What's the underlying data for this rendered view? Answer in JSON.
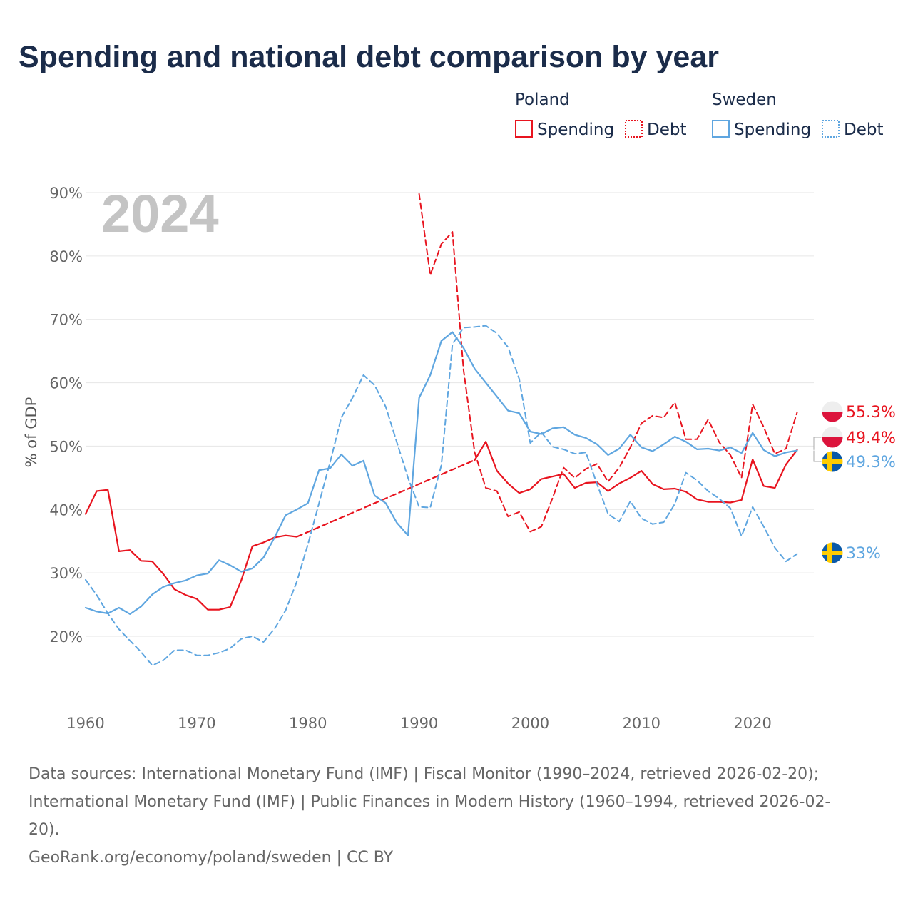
{
  "title": "Spending and national debt comparison by year",
  "colors": {
    "poland": "#e8141f",
    "sweden": "#5fa6e0",
    "grid": "#e6e6e6",
    "text": "#1b2c4a"
  },
  "legend": {
    "groups": [
      {
        "name": "Poland",
        "items": [
          {
            "label": "Spending",
            "style": "solid",
            "color": "#e8141f"
          },
          {
            "label": "Debt",
            "style": "dotted",
            "color": "#e8141f"
          }
        ]
      },
      {
        "name": "Sweden",
        "items": [
          {
            "label": "Spending",
            "style": "solid",
            "color": "#5fa6e0"
          },
          {
            "label": "Debt",
            "style": "dotted",
            "color": "#5fa6e0"
          }
        ]
      }
    ]
  },
  "year_label": "2024",
  "end_labels": [
    {
      "text": "55.3%",
      "country": "poland",
      "value": 55.3
    },
    {
      "text": "49.4%",
      "country": "poland",
      "value": 49.4
    },
    {
      "text": "49.3%",
      "country": "sweden",
      "value": 49.3
    },
    {
      "text": "33%",
      "country": "sweden",
      "value": 33
    }
  ],
  "footer": {
    "line1": "Data sources: International Monetary Fund (IMF) | Fiscal Monitor (1990–2024, retrieved 2026-02-20);",
    "line2": "International Monetary Fund (IMF) | Public Finances in Modern History (1960–1994, retrieved 2026-02-",
    "line3": "20).",
    "line4": "GeoRank.org/economy/poland/sweden | CC BY"
  },
  "chart_data": {
    "type": "line",
    "title": "Spending and national debt comparison by year",
    "xlabel": "",
    "ylabel": "% of GDP",
    "xlim": [
      1960,
      2024
    ],
    "ylim": [
      10,
      90
    ],
    "x_ticks": [
      1960,
      1970,
      1980,
      1990,
      2000,
      2010,
      2020
    ],
    "y_ticks": [
      20,
      30,
      40,
      50,
      60,
      70,
      80,
      90
    ],
    "y_tick_labels": [
      "20%",
      "30%",
      "40%",
      "50%",
      "60%",
      "70%",
      "80%",
      "90%"
    ],
    "grid": true,
    "series": [
      {
        "name": "Poland Spending",
        "country": "poland",
        "kind": "spending",
        "points": [
          [
            1960,
            39.3
          ],
          [
            1961,
            42.9
          ],
          [
            1962,
            43.1
          ],
          [
            1963,
            33.4
          ],
          [
            1964,
            33.6
          ],
          [
            1965,
            31.9
          ],
          [
            1966,
            31.8
          ],
          [
            1967,
            29.8
          ],
          [
            1968,
            27.4
          ],
          [
            1969,
            26.5
          ],
          [
            1970,
            25.9
          ],
          [
            1971,
            24.2
          ],
          [
            1972,
            24.2
          ],
          [
            1973,
            24.6
          ],
          [
            1974,
            28.8
          ],
          [
            1975,
            34.2
          ],
          [
            1976,
            34.8
          ],
          [
            1977,
            35.6
          ],
          [
            1978,
            35.9
          ],
          [
            1979,
            35.7
          ],
          [
            1995,
            47.8
          ],
          [
            1996,
            50.7
          ],
          [
            1997,
            46.1
          ],
          [
            1998,
            44.1
          ],
          [
            1999,
            42.6
          ],
          [
            2000,
            43.2
          ],
          [
            2001,
            44.8
          ],
          [
            2002,
            45.2
          ],
          [
            2003,
            45.6
          ],
          [
            2004,
            43.4
          ],
          [
            2005,
            44.2
          ],
          [
            2006,
            44.3
          ],
          [
            2007,
            42.9
          ],
          [
            2008,
            44.1
          ],
          [
            2009,
            45.0
          ],
          [
            2010,
            46.1
          ],
          [
            2011,
            44.0
          ],
          [
            2012,
            43.2
          ],
          [
            2013,
            43.3
          ],
          [
            2014,
            42.8
          ],
          [
            2015,
            41.6
          ],
          [
            2016,
            41.2
          ],
          [
            2017,
            41.2
          ],
          [
            2018,
            41.1
          ],
          [
            2019,
            41.5
          ],
          [
            2020,
            47.9
          ],
          [
            2021,
            43.7
          ],
          [
            2022,
            43.4
          ],
          [
            2023,
            47.1
          ],
          [
            2024,
            49.4
          ]
        ],
        "gaps": [
          [
            1979,
            1995
          ]
        ]
      },
      {
        "name": "Poland Debt",
        "country": "poland",
        "kind": "debt",
        "points": [
          [
            1990,
            89.8
          ],
          [
            1991,
            77.0
          ],
          [
            1992,
            81.9
          ],
          [
            1993,
            83.8
          ],
          [
            1994,
            62.0
          ],
          [
            1995,
            49.0
          ],
          [
            1996,
            43.4
          ],
          [
            1997,
            42.9
          ],
          [
            1998,
            38.9
          ],
          [
            1999,
            39.6
          ],
          [
            2000,
            36.5
          ],
          [
            2001,
            37.3
          ],
          [
            2002,
            41.8
          ],
          [
            2003,
            46.6
          ],
          [
            2004,
            45.0
          ],
          [
            2005,
            46.4
          ],
          [
            2006,
            47.2
          ],
          [
            2007,
            44.4
          ],
          [
            2008,
            46.6
          ],
          [
            2009,
            49.8
          ],
          [
            2010,
            53.6
          ],
          [
            2011,
            54.8
          ],
          [
            2012,
            54.5
          ],
          [
            2013,
            56.9
          ],
          [
            2014,
            51.1
          ],
          [
            2015,
            51.1
          ],
          [
            2016,
            54.2
          ],
          [
            2017,
            50.6
          ],
          [
            2018,
            48.6
          ],
          [
            2019,
            45.0
          ],
          [
            2020,
            56.6
          ],
          [
            2021,
            53.0
          ],
          [
            2022,
            48.8
          ],
          [
            2023,
            49.6
          ],
          [
            2024,
            55.3
          ]
        ]
      },
      {
        "name": "Sweden Spending",
        "country": "sweden",
        "kind": "spending",
        "points": [
          [
            1960,
            24.5
          ],
          [
            1961,
            23.9
          ],
          [
            1962,
            23.6
          ],
          [
            1963,
            24.5
          ],
          [
            1964,
            23.5
          ],
          [
            1965,
            24.7
          ],
          [
            1966,
            26.6
          ],
          [
            1967,
            27.8
          ],
          [
            1968,
            28.4
          ],
          [
            1969,
            28.8
          ],
          [
            1970,
            29.6
          ],
          [
            1971,
            29.9
          ],
          [
            1972,
            32.0
          ],
          [
            1973,
            31.2
          ],
          [
            1974,
            30.2
          ],
          [
            1975,
            30.7
          ],
          [
            1976,
            32.4
          ],
          [
            1977,
            35.6
          ],
          [
            1978,
            39.1
          ],
          [
            1979,
            40.0
          ],
          [
            1980,
            41.0
          ],
          [
            1981,
            46.2
          ],
          [
            1982,
            46.5
          ],
          [
            1983,
            48.7
          ],
          [
            1984,
            46.9
          ],
          [
            1985,
            47.7
          ],
          [
            1986,
            42.2
          ],
          [
            1987,
            41.0
          ],
          [
            1988,
            37.9
          ],
          [
            1989,
            35.9
          ],
          [
            1990,
            57.6
          ],
          [
            1991,
            61.2
          ],
          [
            1992,
            66.6
          ],
          [
            1993,
            68.0
          ],
          [
            1994,
            65.5
          ],
          [
            1995,
            62.2
          ],
          [
            1996,
            60.0
          ],
          [
            1997,
            57.8
          ],
          [
            1998,
            55.6
          ],
          [
            1999,
            55.2
          ],
          [
            2000,
            52.3
          ],
          [
            2001,
            51.9
          ],
          [
            2002,
            52.8
          ],
          [
            2003,
            53.0
          ],
          [
            2004,
            51.8
          ],
          [
            2005,
            51.3
          ],
          [
            2006,
            50.3
          ],
          [
            2007,
            48.6
          ],
          [
            2008,
            49.6
          ],
          [
            2009,
            51.8
          ],
          [
            2010,
            49.8
          ],
          [
            2011,
            49.2
          ],
          [
            2012,
            50.3
          ],
          [
            2013,
            51.5
          ],
          [
            2014,
            50.7
          ],
          [
            2015,
            49.5
          ],
          [
            2016,
            49.6
          ],
          [
            2017,
            49.3
          ],
          [
            2018,
            49.8
          ],
          [
            2019,
            48.9
          ],
          [
            2020,
            52.1
          ],
          [
            2021,
            49.4
          ],
          [
            2022,
            48.4
          ],
          [
            2023,
            49.0
          ],
          [
            2024,
            49.3
          ]
        ]
      },
      {
        "name": "Sweden Debt",
        "country": "sweden",
        "kind": "debt",
        "points": [
          [
            1960,
            28.9
          ],
          [
            1961,
            26.5
          ],
          [
            1962,
            23.6
          ],
          [
            1963,
            21.1
          ],
          [
            1964,
            19.3
          ],
          [
            1965,
            17.5
          ],
          [
            1966,
            15.4
          ],
          [
            1967,
            16.2
          ],
          [
            1968,
            17.8
          ],
          [
            1969,
            17.8
          ],
          [
            1970,
            17.0
          ],
          [
            1971,
            17.0
          ],
          [
            1972,
            17.4
          ],
          [
            1973,
            18.1
          ],
          [
            1974,
            19.6
          ],
          [
            1975,
            20.0
          ],
          [
            1976,
            19.1
          ],
          [
            1977,
            21.2
          ],
          [
            1978,
            24.1
          ],
          [
            1979,
            28.6
          ],
          [
            1980,
            34.5
          ],
          [
            1981,
            41.0
          ],
          [
            1982,
            47.5
          ],
          [
            1983,
            54.5
          ],
          [
            1984,
            57.6
          ],
          [
            1985,
            61.2
          ],
          [
            1986,
            59.6
          ],
          [
            1987,
            56.2
          ],
          [
            1988,
            50.6
          ],
          [
            1989,
            45.0
          ],
          [
            1990,
            40.4
          ],
          [
            1991,
            40.3
          ],
          [
            1992,
            47.0
          ],
          [
            1993,
            66.1
          ],
          [
            1994,
            68.7
          ],
          [
            1995,
            68.8
          ],
          [
            1996,
            69.0
          ],
          [
            1997,
            67.8
          ],
          [
            1998,
            65.6
          ],
          [
            1999,
            60.6
          ],
          [
            2000,
            50.5
          ],
          [
            2001,
            52.2
          ],
          [
            2002,
            49.9
          ],
          [
            2003,
            49.5
          ],
          [
            2004,
            48.8
          ],
          [
            2005,
            49.0
          ],
          [
            2006,
            44.0
          ],
          [
            2007,
            39.3
          ],
          [
            2008,
            38.1
          ],
          [
            2009,
            41.3
          ],
          [
            2010,
            38.6
          ],
          [
            2011,
            37.7
          ],
          [
            2012,
            38.0
          ],
          [
            2013,
            40.9
          ],
          [
            2014,
            45.8
          ],
          [
            2015,
            44.6
          ],
          [
            2016,
            42.9
          ],
          [
            2017,
            41.7
          ],
          [
            2018,
            40.2
          ],
          [
            2019,
            35.8
          ],
          [
            2020,
            40.4
          ],
          [
            2021,
            37.3
          ],
          [
            2022,
            34.0
          ],
          [
            2023,
            31.8
          ],
          [
            2024,
            33.0
          ]
        ]
      }
    ]
  }
}
